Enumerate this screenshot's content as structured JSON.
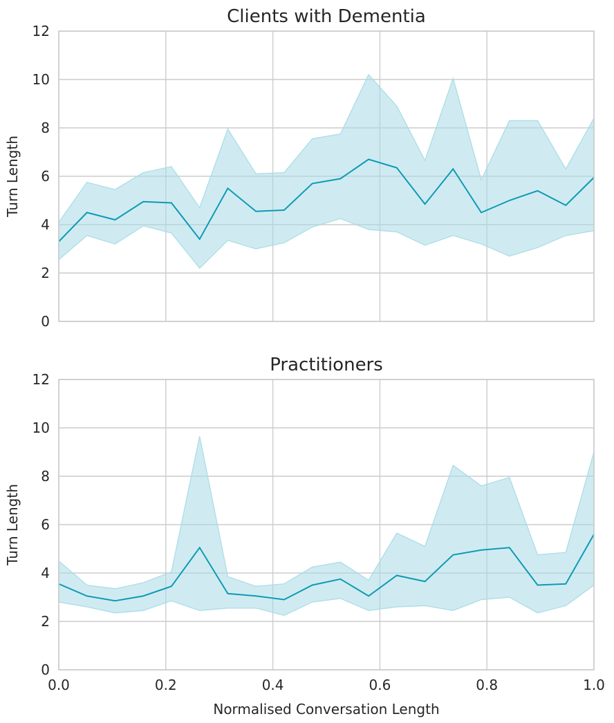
{
  "chart_data": [
    {
      "type": "line",
      "title": "Clients with Dementia",
      "xlabel": "",
      "ylabel": "Turn Length",
      "xlim": [
        0.0,
        1.0
      ],
      "ylim": [
        0,
        12
      ],
      "xticks": [
        0.0,
        0.2,
        0.4,
        0.6,
        0.8,
        1.0
      ],
      "yticks": [
        0,
        2,
        4,
        6,
        8,
        10,
        12
      ],
      "show_x_tick_labels": false,
      "grid": true,
      "color": "#0e9ab4",
      "band_color": "#a8dbe6",
      "x": [
        0.0,
        0.0526,
        0.1053,
        0.1579,
        0.2105,
        0.2632,
        0.3158,
        0.3684,
        0.4211,
        0.4737,
        0.5263,
        0.5789,
        0.6316,
        0.6842,
        0.7368,
        0.7895,
        0.8421,
        0.8947,
        0.9474,
        1.0
      ],
      "values": [
        3.3,
        4.5,
        4.2,
        4.95,
        4.9,
        3.4,
        5.5,
        4.55,
        4.6,
        5.7,
        5.9,
        6.7,
        6.35,
        4.85,
        6.3,
        4.5,
        5.0,
        5.4,
        4.8,
        5.95
      ],
      "lower": [
        2.55,
        3.55,
        3.2,
        3.95,
        3.65,
        2.2,
        3.35,
        3.0,
        3.25,
        3.9,
        4.25,
        3.8,
        3.7,
        3.15,
        3.55,
        3.2,
        2.7,
        3.05,
        3.55,
        3.75
      ],
      "upper": [
        4.1,
        5.75,
        5.45,
        6.15,
        6.4,
        4.7,
        7.95,
        6.1,
        6.15,
        7.55,
        7.75,
        10.2,
        8.9,
        6.65,
        10.05,
        5.85,
        8.3,
        8.3,
        6.3,
        8.4
      ]
    },
    {
      "type": "line",
      "title": "Practitioners",
      "xlabel": "Normalised Conversation Length",
      "ylabel": "Turn Length",
      "xlim": [
        0.0,
        1.0
      ],
      "ylim": [
        0,
        12
      ],
      "xticks": [
        0.0,
        0.2,
        0.4,
        0.6,
        0.8,
        1.0
      ],
      "yticks": [
        0,
        2,
        4,
        6,
        8,
        10,
        12
      ],
      "show_x_tick_labels": true,
      "grid": true,
      "color": "#0e9ab4",
      "band_color": "#a8dbe6",
      "x": [
        0.0,
        0.0526,
        0.1053,
        0.1579,
        0.2105,
        0.2632,
        0.3158,
        0.3684,
        0.4211,
        0.4737,
        0.5263,
        0.5789,
        0.6316,
        0.6842,
        0.7368,
        0.7895,
        0.8421,
        0.8947,
        0.9474,
        1.0
      ],
      "values": [
        3.55,
        3.05,
        2.85,
        3.05,
        3.45,
        5.05,
        3.15,
        3.05,
        2.9,
        3.5,
        3.75,
        3.05,
        3.9,
        3.65,
        4.75,
        4.95,
        5.05,
        3.5,
        3.55,
        5.6
      ],
      "lower": [
        2.8,
        2.6,
        2.35,
        2.45,
        2.85,
        2.45,
        2.55,
        2.55,
        2.25,
        2.8,
        2.95,
        2.45,
        2.6,
        2.65,
        2.45,
        2.9,
        3.0,
        2.35,
        2.65,
        3.5
      ],
      "upper": [
        4.5,
        3.5,
        3.35,
        3.6,
        4.05,
        9.65,
        3.85,
        3.45,
        3.55,
        4.25,
        4.45,
        3.7,
        5.65,
        5.1,
        8.45,
        7.6,
        7.95,
        4.75,
        4.85,
        9.0
      ]
    }
  ]
}
